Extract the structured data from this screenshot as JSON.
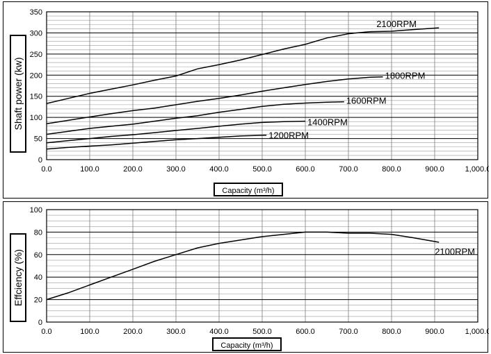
{
  "chart_data": [
    {
      "type": "line",
      "ylabel": "Shaft power (kw)",
      "xlabel": "Capacity (m³/h)",
      "xlim": [
        0,
        1000
      ],
      "ylim": [
        0,
        350
      ],
      "x_ticks": [
        "0.0",
        "100.0",
        "200.0",
        "300.0",
        "400.0",
        "500.0",
        "600.0",
        "700.0",
        "800.0",
        "900.0",
        "1,000.0"
      ],
      "y_ticks": [
        "0",
        "50",
        "100",
        "150",
        "200",
        "250",
        "300",
        "350"
      ],
      "grid": true,
      "series": [
        {
          "name": "2100RPM",
          "x": [
            0,
            50,
            100,
            150,
            200,
            250,
            300,
            350,
            400,
            450,
            500,
            550,
            600,
            650,
            700,
            750,
            800,
            850,
            910
          ],
          "y": [
            133,
            145,
            157,
            167,
            177,
            188,
            198,
            215,
            225,
            236,
            249,
            262,
            273,
            288,
            298,
            303,
            304,
            308,
            312
          ]
        },
        {
          "name": "1800RPM",
          "x": [
            0,
            50,
            100,
            150,
            200,
            250,
            300,
            350,
            400,
            450,
            500,
            550,
            600,
            650,
            700,
            750,
            780
          ],
          "y": [
            85,
            93,
            101,
            109,
            116,
            122,
            130,
            138,
            145,
            153,
            162,
            170,
            178,
            185,
            191,
            195,
            196
          ]
        },
        {
          "name": "1600RPM",
          "x": [
            0,
            50,
            100,
            150,
            200,
            250,
            300,
            350,
            400,
            450,
            500,
            550,
            600,
            650,
            690
          ],
          "y": [
            60,
            67,
            74,
            79,
            84,
            91,
            98,
            104,
            112,
            119,
            126,
            131,
            134,
            136,
            137
          ]
        },
        {
          "name": "1400RPM",
          "x": [
            0,
            50,
            100,
            150,
            200,
            250,
            300,
            350,
            400,
            450,
            500,
            550,
            600
          ],
          "y": [
            40,
            45,
            50,
            55,
            59,
            64,
            69,
            74,
            79,
            84,
            88,
            90,
            91
          ]
        },
        {
          "name": "1200RPM",
          "x": [
            0,
            50,
            100,
            150,
            200,
            250,
            300,
            350,
            400,
            450,
            510
          ],
          "y": [
            25,
            29,
            32,
            35,
            39,
            43,
            47,
            50,
            53,
            56,
            58
          ]
        }
      ]
    },
    {
      "type": "line",
      "ylabel": "Effciency (%)",
      "xlabel": "Capacity (m³/h)",
      "xlim": [
        0,
        1000
      ],
      "ylim": [
        0,
        100
      ],
      "x_ticks": [
        "0.0",
        "100.0",
        "200.0",
        "300.0",
        "400.0",
        "500.0",
        "600.0",
        "700.0",
        "800.0",
        "900.0",
        "1,000.0"
      ],
      "y_ticks": [
        "0",
        "20",
        "40",
        "60",
        "80",
        "100"
      ],
      "grid": true,
      "series": [
        {
          "name": "2100RPM",
          "x": [
            0,
            50,
            100,
            150,
            200,
            250,
            300,
            350,
            400,
            450,
            500,
            550,
            600,
            650,
            700,
            750,
            800,
            850,
            910
          ],
          "y": [
            20,
            26,
            33,
            40,
            47,
            54,
            60,
            66,
            70,
            73,
            76,
            78,
            80,
            80,
            79,
            79,
            78,
            75,
            71
          ]
        }
      ]
    }
  ]
}
